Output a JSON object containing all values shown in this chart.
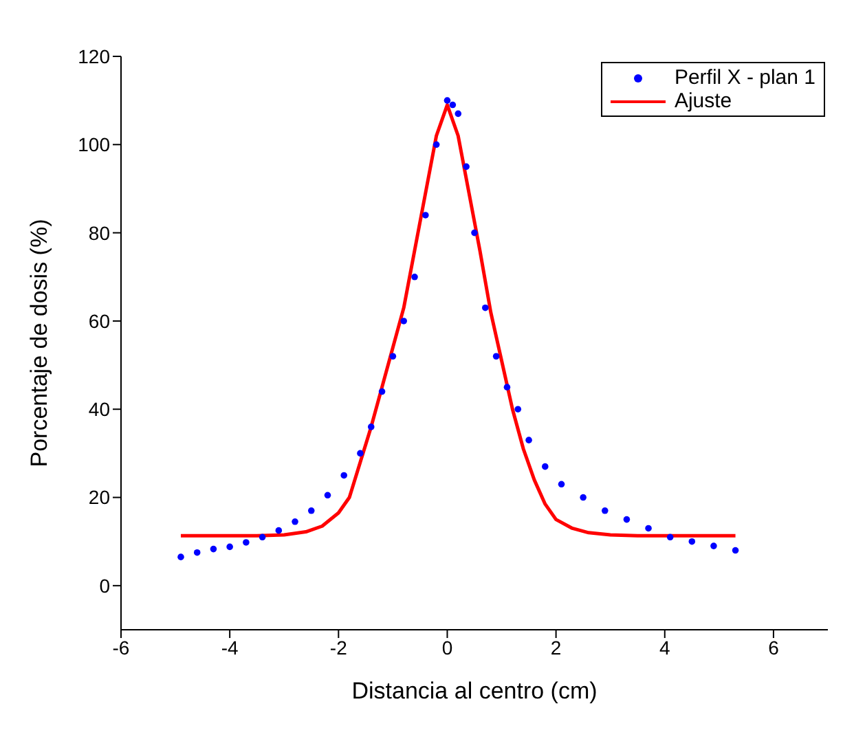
{
  "chart_data": {
    "type": "scatter",
    "xlabel": "Distancia al centro (cm)",
    "ylabel": "Porcentaje de dosis (%)",
    "xlim": [
      -6,
      7
    ],
    "xticks": [
      -6,
      -4,
      -2,
      0,
      2,
      4,
      6
    ],
    "ylim": [
      -10,
      120
    ],
    "yticks": [
      0,
      20,
      40,
      60,
      80,
      100,
      120
    ],
    "grid": false,
    "legend": "top right",
    "series": [
      {
        "name": "Perfil X - plan 1",
        "marker": "circle",
        "color": "#0000ff",
        "x": [
          -4.9,
          -4.6,
          -4.3,
          -4.0,
          -3.7,
          -3.4,
          -3.1,
          -2.8,
          -2.5,
          -2.2,
          -1.9,
          -1.6,
          -1.4,
          -1.2,
          -1.0,
          -0.8,
          -0.6,
          -0.4,
          -0.2,
          0,
          0.1,
          0.2,
          0.35,
          0.5,
          0.7,
          0.9,
          1.1,
          1.3,
          1.5,
          1.8,
          2.1,
          2.5,
          2.9,
          3.3,
          3.7,
          4.1,
          4.5,
          4.9,
          5.3
        ],
        "values": [
          6.5,
          7.5,
          8.3,
          8.8,
          9.8,
          11,
          12.5,
          14.5,
          17,
          20.5,
          25,
          30,
          36,
          44,
          52,
          60,
          70,
          84,
          100,
          110,
          109,
          107,
          95,
          80,
          63,
          52,
          45,
          40,
          33,
          27,
          23,
          20,
          17,
          15,
          13,
          11,
          10,
          9,
          8
        ]
      },
      {
        "name": "Ajuste",
        "type": "line",
        "marker": "none",
        "line_style": "solid",
        "color": "#ff0000",
        "x": [
          -4.9,
          -3.5,
          -3,
          -2.6,
          -2.3,
          -2.0,
          -1.8,
          -1.6,
          -1.4,
          -1.2,
          -1.0,
          -0.8,
          -0.6,
          -0.4,
          -0.2,
          0,
          0.2,
          0.4,
          0.6,
          0.8,
          1.0,
          1.2,
          1.4,
          1.6,
          1.8,
          2.0,
          2.3,
          2.6,
          3.0,
          3.5,
          5.3
        ],
        "values": [
          11.3,
          11.3,
          11.5,
          12.2,
          13.5,
          16.5,
          20,
          28,
          36,
          45,
          54,
          63,
          76,
          89,
          102,
          109,
          102,
          89,
          76,
          62,
          51,
          40,
          31,
          24,
          18.5,
          15,
          13,
          12,
          11.5,
          11.3,
          11.3
        ]
      }
    ]
  }
}
